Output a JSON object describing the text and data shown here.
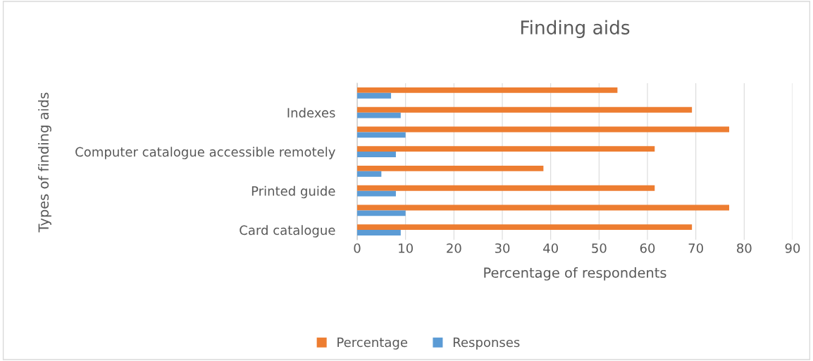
{
  "chart_data": {
    "type": "bar",
    "orientation": "horizontal",
    "title": "Finding aids",
    "xlabel": "Percentage of respondents",
    "ylabel": "Types of finding aids",
    "categories": [
      null,
      "Indexes",
      null,
      "Computer catalogue accessible remotely",
      null,
      "Printed guide",
      null,
      "Card catalogue"
    ],
    "series": [
      {
        "name": "Percentage",
        "color": "#ed7d31",
        "values": [
          53.8,
          69.2,
          76.9,
          61.5,
          38.5,
          61.5,
          76.9,
          69.2
        ]
      },
      {
        "name": "Responses",
        "color": "#5b9bd5",
        "values": [
          7,
          9,
          10,
          8,
          5,
          8,
          10,
          9
        ]
      }
    ],
    "xlim": [
      0,
      90
    ],
    "xticks": [
      0,
      10,
      20,
      30,
      40,
      50,
      60,
      70,
      80,
      90
    ],
    "grid": "x",
    "legend": "bottom"
  }
}
